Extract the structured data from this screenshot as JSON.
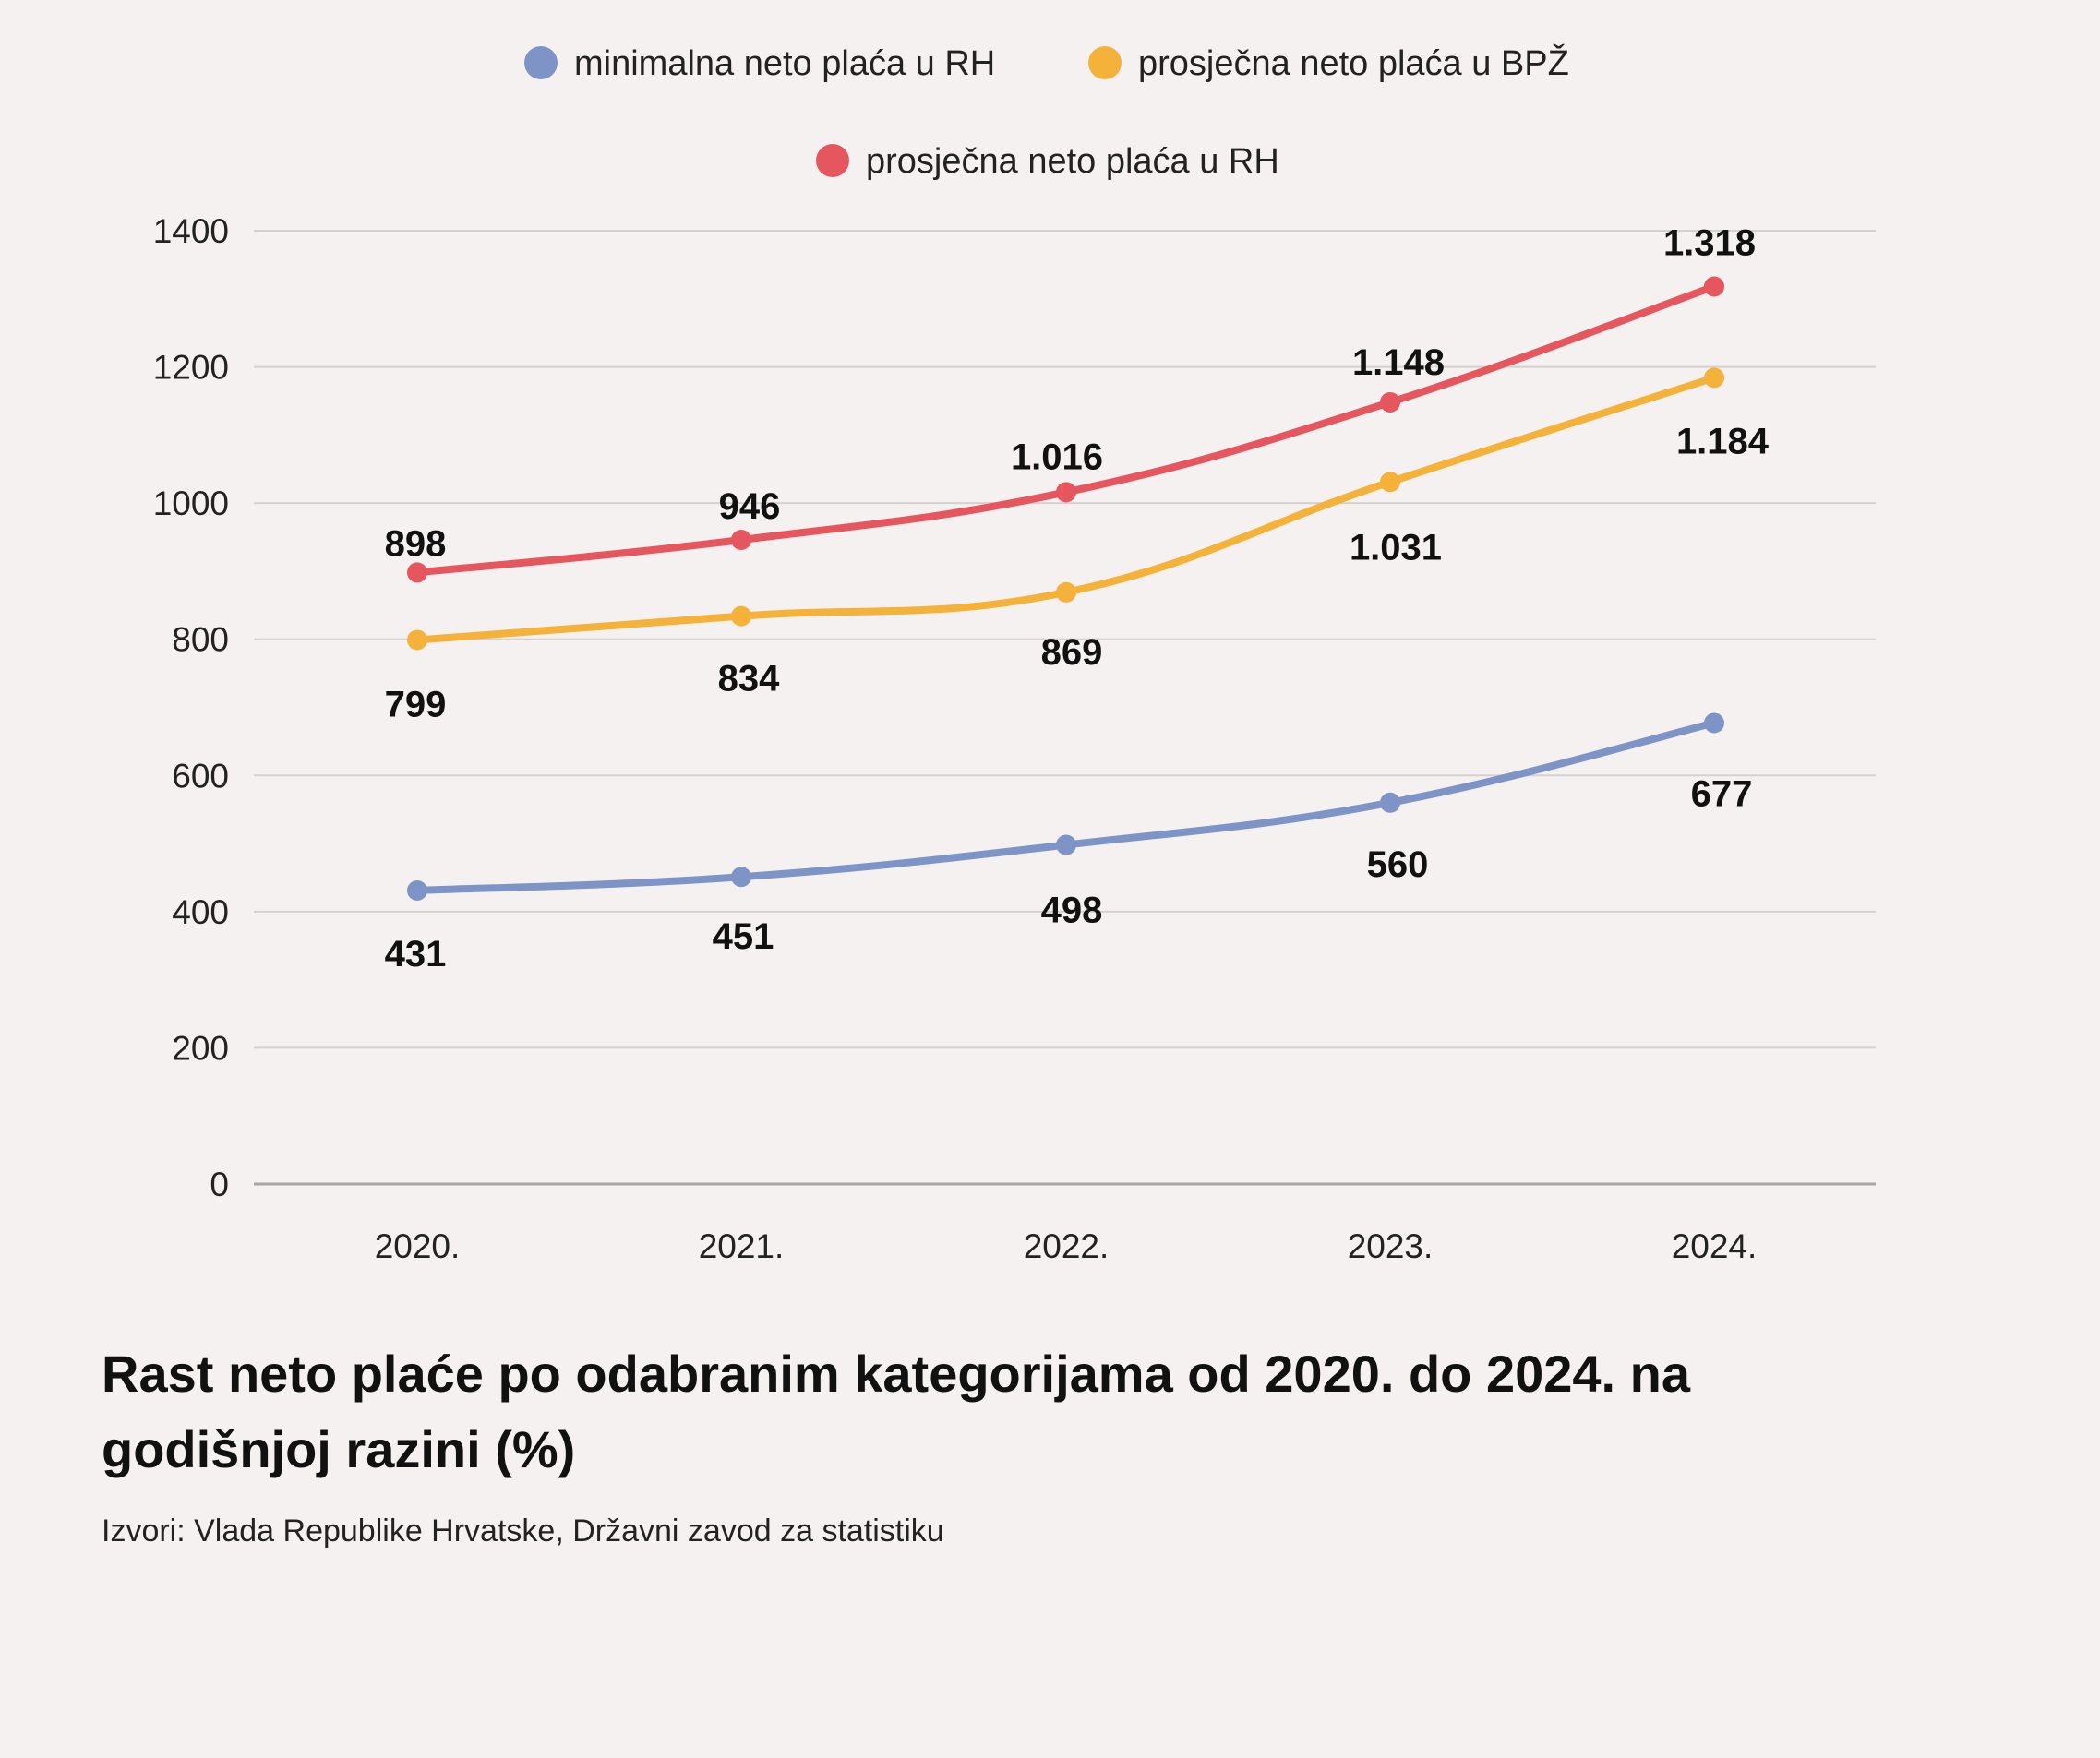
{
  "chart_data": {
    "type": "line",
    "title": "Rast neto plaće po odabranim kategorijama od 2020. do 2024. na godišnjoj razini (%)",
    "source": "Izvori: Vlada Republike Hrvatske, Državni zavod za statistiku",
    "categories": [
      "2020.",
      "2021.",
      "2022.",
      "2023.",
      "2024."
    ],
    "ylim": [
      0,
      1400
    ],
    "yticks": [
      "0",
      "200",
      "400",
      "600",
      "800",
      "1000",
      "1200",
      "1400"
    ],
    "grid": true,
    "legend_position": "top-center",
    "series": [
      {
        "name": "minimalna neto plaća u RH",
        "color": "#7f94c6",
        "values": [
          431,
          451,
          498,
          560,
          677
        ],
        "labels": [
          "431",
          "451",
          "498",
          "560",
          "677"
        ],
        "label_position": "below"
      },
      {
        "name": "prosječna neto plaća u BPŽ",
        "color": "#f4b23a",
        "values": [
          799,
          834,
          869,
          1031,
          1184
        ],
        "labels": [
          "799",
          "834",
          "869",
          "1.031",
          "1.184"
        ],
        "label_position": "below"
      },
      {
        "name": "prosječna neto plaća u RH",
        "color": "#e5565f",
        "values": [
          898,
          946,
          1016,
          1148,
          1318
        ],
        "labels": [
          "898",
          "946",
          "1.016",
          "1.148",
          "1.318"
        ],
        "label_position": "above"
      }
    ]
  }
}
